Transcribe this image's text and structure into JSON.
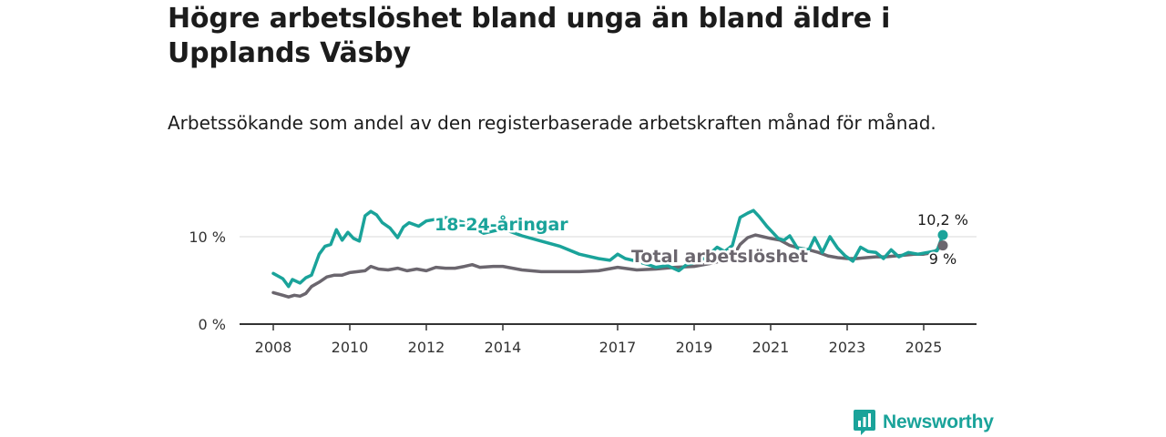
{
  "title": "Högre arbetslöshet bland unga än bland äldre i Upplands Väsby",
  "subtitle": "Arbetssökande som andel av den registerbaserade arbetskraften månad för månad.",
  "brand": "Newsworthy",
  "colors": {
    "young": "#1aa39a",
    "total": "#6b666e",
    "axis": "#333333",
    "grid": "#d9d9d9",
    "brand": "#1aa39a"
  },
  "chart_data": {
    "type": "line",
    "title": "Högre arbetslöshet bland unga än bland äldre i Upplands Väsby",
    "subtitle": "Arbetssökande som andel av den registerbaserade arbetskraften månad för månad.",
    "xlabel": "",
    "ylabel": "",
    "xlim": [
      2008,
      2026.4
    ],
    "ylim": [
      0,
      13.5
    ],
    "yticks": [
      0,
      10
    ],
    "ytick_labels": [
      "0 %",
      "10 %"
    ],
    "xticks": [
      2008,
      2010,
      2012,
      2014,
      2017,
      2019,
      2021,
      2023,
      2025
    ],
    "grid": "horizontal",
    "legend": "direct labels on lines",
    "series": [
      {
        "name": "18-24-åringar",
        "color": "#1aa39a",
        "end_label": "10,2 %",
        "x": [
          2008.0,
          2008.25,
          2008.4,
          2008.5,
          2008.7,
          2008.85,
          2009.0,
          2009.2,
          2009.35,
          2009.5,
          2009.65,
          2009.8,
          2009.95,
          2010.1,
          2010.25,
          2010.4,
          2010.55,
          2010.7,
          2010.85,
          2011.05,
          2011.25,
          2011.4,
          2011.55,
          2011.8,
          2012.0,
          2012.25,
          2012.5,
          2012.7,
          2013.0,
          2013.5,
          2014.0,
          2014.5,
          2015.0,
          2015.5,
          2016.0,
          2016.5,
          2016.8,
          2017.0,
          2017.2,
          2017.5,
          2017.8,
          2018.0,
          2018.3,
          2018.6,
          2018.8,
          2019.0,
          2019.3,
          2019.6,
          2019.8,
          2020.0,
          2020.2,
          2020.4,
          2020.55,
          2020.7,
          2020.9,
          2021.05,
          2021.2,
          2021.35,
          2021.5,
          2021.7,
          2021.85,
          2022.0,
          2022.15,
          2022.35,
          2022.55,
          2022.75,
          2022.95,
          2023.15,
          2023.35,
          2023.55,
          2023.75,
          2023.95,
          2024.15,
          2024.35,
          2024.6,
          2024.85,
          2025.1,
          2025.35,
          2025.5
        ],
        "y": [
          5.8,
          5.2,
          4.3,
          5.1,
          4.7,
          5.3,
          5.6,
          8.0,
          8.9,
          9.1,
          10.8,
          9.6,
          10.5,
          9.8,
          9.5,
          12.4,
          12.9,
          12.5,
          11.6,
          11.0,
          9.9,
          11.1,
          11.6,
          11.2,
          11.8,
          12.0,
          12.2,
          12.0,
          11.6,
          10.4,
          10.9,
          10.1,
          9.5,
          8.9,
          8.0,
          7.5,
          7.3,
          8.0,
          7.5,
          7.2,
          6.8,
          6.5,
          6.7,
          6.1,
          6.8,
          7.0,
          7.6,
          8.8,
          8.3,
          9.0,
          12.2,
          12.7,
          13.0,
          12.3,
          11.2,
          10.5,
          9.8,
          9.6,
          10.1,
          8.7,
          8.6,
          8.5,
          9.9,
          8.2,
          10.0,
          8.7,
          7.8,
          7.2,
          8.8,
          8.3,
          8.2,
          7.5,
          8.5,
          7.7,
          8.2,
          8.0,
          8.2,
          8.4,
          10.2
        ]
      },
      {
        "name": "Total arbetslöshet",
        "color": "#6b666e",
        "end_label": "9 %",
        "x": [
          2008.0,
          2008.25,
          2008.4,
          2008.55,
          2008.7,
          2008.85,
          2009.0,
          2009.2,
          2009.4,
          2009.6,
          2009.8,
          2010.0,
          2010.2,
          2010.4,
          2010.55,
          2010.75,
          2011.0,
          2011.25,
          2011.5,
          2011.75,
          2012.0,
          2012.25,
          2012.5,
          2012.75,
          2013.0,
          2013.2,
          2013.4,
          2013.75,
          2014.0,
          2014.5,
          2015.0,
          2015.5,
          2016.0,
          2016.5,
          2017.0,
          2017.5,
          2018.0,
          2018.5,
          2019.0,
          2019.5,
          2020.0,
          2020.2,
          2020.4,
          2020.6,
          2020.8,
          2021.0,
          2021.25,
          2021.5,
          2021.75,
          2022.0,
          2022.25,
          2022.5,
          2022.75,
          2023.0,
          2023.25,
          2023.5,
          2023.75,
          2024.0,
          2024.25,
          2024.5,
          2024.75,
          2025.0,
          2025.25,
          2025.5
        ],
        "y": [
          3.6,
          3.3,
          3.1,
          3.3,
          3.2,
          3.5,
          4.3,
          4.8,
          5.4,
          5.6,
          5.6,
          5.9,
          6.0,
          6.1,
          6.6,
          6.3,
          6.2,
          6.4,
          6.1,
          6.3,
          6.1,
          6.5,
          6.4,
          6.4,
          6.6,
          6.8,
          6.5,
          6.6,
          6.6,
          6.2,
          6.0,
          6.0,
          6.0,
          6.1,
          6.5,
          6.2,
          6.3,
          6.5,
          6.6,
          7.0,
          7.6,
          9.1,
          9.9,
          10.2,
          10.0,
          9.8,
          9.6,
          9.0,
          8.7,
          8.5,
          8.2,
          7.8,
          7.6,
          7.5,
          7.5,
          7.6,
          7.7,
          7.7,
          7.8,
          7.9,
          8.0,
          8.0,
          8.2,
          9.0
        ]
      }
    ]
  }
}
